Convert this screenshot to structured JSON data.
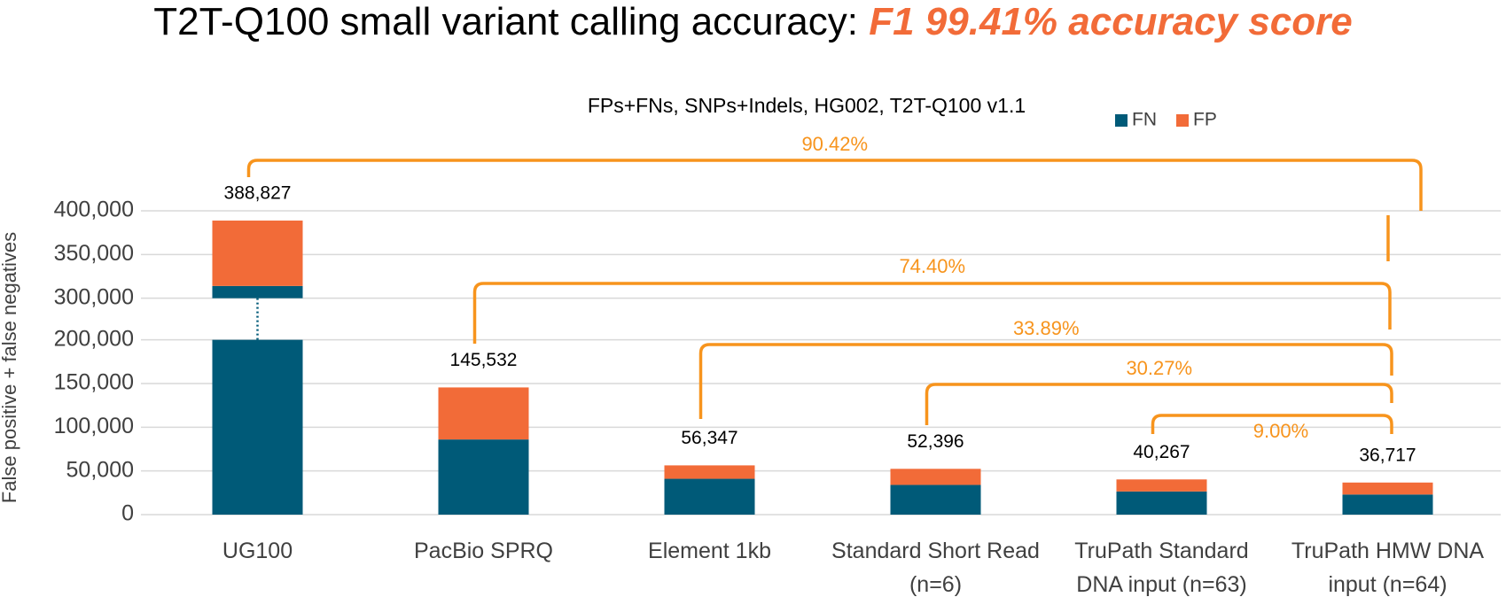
{
  "chart_data": {
    "type": "stacked_bar",
    "title": "T2T-Q100 small variant calling accuracy: ",
    "title_highlight": "F1 99.41% accuracy score",
    "subtitle": "FPs+FNs, SNPs+Indels, HG002, T2T-Q100 v1.1",
    "y_label": "False positive + false negatives",
    "categories": [
      "UG100",
      "PacBio SPRQ",
      "Element 1kb",
      "Standard Short Read (n=6)",
      "TruPath Standard DNA input (n=63)",
      "TruPath HMW DNA input (n=64)"
    ],
    "series": [
      {
        "name": "FN",
        "color": "#005a78",
        "values": [
          314000,
          86000,
          41000,
          34000,
          26500,
          23000
        ]
      },
      {
        "name": "FP",
        "color": "#f26b38",
        "values": [
          74827,
          59532,
          15347,
          18396,
          13767,
          13717
        ]
      }
    ],
    "totals": {
      "values": [
        388827,
        145532,
        56347,
        52396,
        40267,
        36717
      ],
      "value_labels": [
        "388,827",
        "145,532",
        "56,347",
        "52,396",
        "40,267",
        "36,717"
      ]
    },
    "comparisons": {
      "values": [
        90.42,
        74.4,
        33.89,
        30.27,
        9.0
      ],
      "value_labels": [
        "90.42%",
        "74.40%",
        "33.89%",
        "30.27%",
        "9.00%"
      ],
      "color": "#f7941d"
    },
    "ylim": [
      0,
      400000
    ],
    "ybreak": [
      200000,
      300000
    ],
    "yticks": [
      {
        "value": 0,
        "label": "0"
      },
      {
        "value": 50000,
        "label": "50,000"
      },
      {
        "value": 100000,
        "label": "100,000"
      },
      {
        "value": 150000,
        "label": "150,000"
      },
      {
        "value": 200000,
        "label": "200,000"
      },
      {
        "value": 300000,
        "label": "300,000"
      },
      {
        "value": 350000,
        "label": "350,000"
      },
      {
        "value": 400000,
        "label": "400,000"
      }
    ],
    "grid": true,
    "legend": "top-right"
  }
}
